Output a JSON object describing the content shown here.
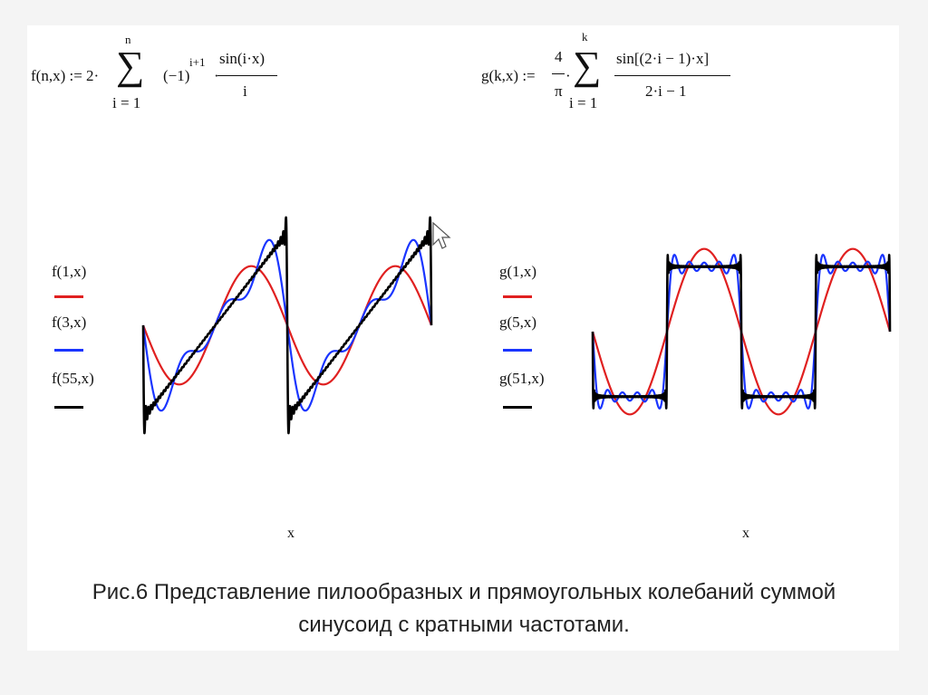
{
  "formulas": {
    "f": {
      "lhs": "f(n,x) := 2·",
      "upper": "n",
      "lower": "i = 1",
      "factor": "(−1)",
      "exponent": "i+1",
      "dot": "·",
      "numerator": "sin(i·x)",
      "denominator": "i"
    },
    "g": {
      "lhs": "g(k,x) :=",
      "coef_num": "4",
      "coef_den": "π",
      "dot": "·",
      "upper": "k",
      "lower": "i = 1",
      "numerator": "sin[(2·i − 1)·x]",
      "denominator": "2·i − 1"
    }
  },
  "caption": {
    "line1": "Рис.6  Представление пилообразных и прямоугольных колебаний суммой",
    "line2": "синусоид с кратными частотами."
  },
  "chart_data": [
    {
      "type": "line",
      "xlabel": "x",
      "ylabel": "",
      "series": [
        {
          "name": "f(1,x)",
          "color": "#e02020",
          "function": "f",
          "n": 1
        },
        {
          "name": "f(3,x)",
          "color": "#1a35ff",
          "function": "f",
          "n": 3
        },
        {
          "name": "f(55,x)",
          "color": "#000000",
          "function": "f",
          "n": 55
        }
      ],
      "xlim": [
        -3.14159,
        9.42478
      ],
      "ylim": [
        -3.4,
        3.4
      ]
    },
    {
      "type": "line",
      "xlabel": "x",
      "ylabel": "",
      "series": [
        {
          "name": "g(1,x)",
          "color": "#e02020",
          "function": "g",
          "k": 1
        },
        {
          "name": "g(5,x)",
          "color": "#1a35ff",
          "function": "g",
          "k": 5
        },
        {
          "name": "g(51,x)",
          "color": "#000000",
          "function": "g",
          "k": 51
        }
      ],
      "xlim": [
        -3.14159,
        9.42478
      ],
      "ylim": [
        -1.45,
        1.45
      ]
    }
  ]
}
